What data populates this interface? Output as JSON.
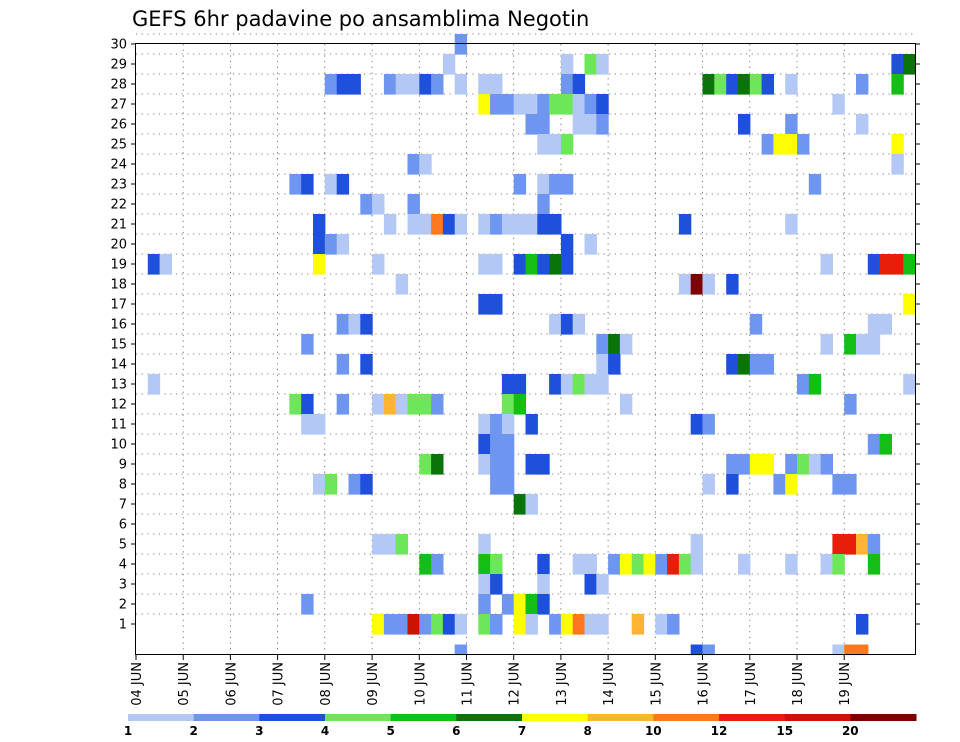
{
  "chart_data": {
    "type": "heatmap",
    "title": "GEFS 6hr padavine po ansamblima Negotin",
    "x_ticks": [
      "04 JUN",
      "05 JUN",
      "06 JUN",
      "07 JUN",
      "08 JUN",
      "09 JUN",
      "10 JUN",
      "11 JUN",
      "12 JUN",
      "13 JUN",
      "14 JUN",
      "15 JUN",
      "16 JUN",
      "17 JUN",
      "18 JUN",
      "19 JUN"
    ],
    "y_ticks": [
      "1",
      "2",
      "3",
      "4",
      "5",
      "6",
      "7",
      "8",
      "9",
      "10",
      "11",
      "12",
      "13",
      "14",
      "15",
      "16",
      "17",
      "18",
      "19",
      "20",
      "21",
      "22",
      "23",
      "24",
      "25",
      "26",
      "27",
      "28",
      "29",
      "30"
    ],
    "grid": "dotted",
    "legend": {
      "placement": "bottom",
      "labels": [
        "1",
        "2",
        "3",
        "4",
        "5",
        "6",
        "7",
        "8",
        "10",
        "12",
        "15",
        "20"
      ],
      "colors": [
        "#b4c8f5",
        "#6e96f0",
        "#1e50dc",
        "#6ee65a",
        "#14be14",
        "#0a730a",
        "#ffff00",
        "#ffb432",
        "#ff781e",
        "#e61e0a",
        "#c81400",
        "#7d0000"
      ]
    },
    "cells": [
      [
        26,
        29,
        1
      ],
      [
        27,
        30,
        2
      ],
      [
        36,
        29,
        1
      ],
      [
        38,
        29,
        4
      ],
      [
        39,
        29,
        1
      ],
      [
        64,
        29,
        3
      ],
      [
        65,
        29,
        6
      ],
      [
        16,
        28,
        2
      ],
      [
        17,
        28,
        3
      ],
      [
        18,
        28,
        3
      ],
      [
        21,
        28,
        2
      ],
      [
        22,
        28,
        1
      ],
      [
        23,
        28,
        1
      ],
      [
        24,
        28,
        3
      ],
      [
        25,
        28,
        2
      ],
      [
        27,
        28,
        1
      ],
      [
        29,
        28,
        1
      ],
      [
        30,
        28,
        1
      ],
      [
        36,
        28,
        2
      ],
      [
        37,
        28,
        3
      ],
      [
        48,
        28,
        6
      ],
      [
        49,
        28,
        4
      ],
      [
        50,
        28,
        3
      ],
      [
        51,
        28,
        6
      ],
      [
        52,
        28,
        4
      ],
      [
        53,
        28,
        3
      ],
      [
        55,
        28,
        1
      ],
      [
        61,
        28,
        2
      ],
      [
        64,
        28,
        5
      ],
      [
        29,
        27,
        7
      ],
      [
        30,
        27,
        2
      ],
      [
        31,
        27,
        2
      ],
      [
        32,
        27,
        1
      ],
      [
        33,
        27,
        1
      ],
      [
        34,
        27,
        2
      ],
      [
        35,
        27,
        4
      ],
      [
        36,
        27,
        4
      ],
      [
        37,
        27,
        1
      ],
      [
        38,
        27,
        2
      ],
      [
        39,
        27,
        3
      ],
      [
        59,
        27,
        1
      ],
      [
        33,
        26,
        2
      ],
      [
        34,
        26,
        2
      ],
      [
        37,
        26,
        1
      ],
      [
        38,
        26,
        1
      ],
      [
        39,
        26,
        2
      ],
      [
        51,
        26,
        3
      ],
      [
        55,
        26,
        2
      ],
      [
        61,
        26,
        1
      ],
      [
        34,
        25,
        1
      ],
      [
        35,
        25,
        1
      ],
      [
        36,
        25,
        4
      ],
      [
        53,
        25,
        2
      ],
      [
        54,
        25,
        7
      ],
      [
        55,
        25,
        7
      ],
      [
        56,
        25,
        2
      ],
      [
        64,
        25,
        7
      ],
      [
        23,
        24,
        2
      ],
      [
        24,
        24,
        1
      ],
      [
        64,
        24,
        1
      ],
      [
        13,
        23,
        2
      ],
      [
        14,
        23,
        3
      ],
      [
        16,
        23,
        1
      ],
      [
        17,
        23,
        3
      ],
      [
        32,
        23,
        2
      ],
      [
        34,
        23,
        1
      ],
      [
        35,
        23,
        2
      ],
      [
        36,
        23,
        2
      ],
      [
        57,
        23,
        2
      ],
      [
        19,
        22,
        2
      ],
      [
        20,
        22,
        1
      ],
      [
        23,
        22,
        2
      ],
      [
        34,
        22,
        2
      ],
      [
        15,
        21,
        3
      ],
      [
        21,
        21,
        1
      ],
      [
        23,
        21,
        1
      ],
      [
        24,
        21,
        1
      ],
      [
        25,
        21,
        9
      ],
      [
        26,
        21,
        3
      ],
      [
        27,
        21,
        1
      ],
      [
        29,
        21,
        1
      ],
      [
        30,
        21,
        2
      ],
      [
        31,
        21,
        1
      ],
      [
        32,
        21,
        1
      ],
      [
        33,
        21,
        1
      ],
      [
        34,
        21,
        3
      ],
      [
        35,
        21,
        3
      ],
      [
        46,
        21,
        3
      ],
      [
        55,
        21,
        1
      ],
      [
        15,
        20,
        3
      ],
      [
        16,
        20,
        2
      ],
      [
        17,
        20,
        1
      ],
      [
        36,
        20,
        3
      ],
      [
        38,
        20,
        1
      ],
      [
        1,
        19,
        3
      ],
      [
        2,
        19,
        1
      ],
      [
        15,
        19,
        7
      ],
      [
        20,
        19,
        1
      ],
      [
        29,
        19,
        1
      ],
      [
        30,
        19,
        1
      ],
      [
        32,
        19,
        3
      ],
      [
        33,
        19,
        5
      ],
      [
        34,
        19,
        3
      ],
      [
        35,
        19,
        6
      ],
      [
        36,
        19,
        3
      ],
      [
        58,
        19,
        1
      ],
      [
        62,
        19,
        3
      ],
      [
        63,
        19,
        10
      ],
      [
        64,
        19,
        10
      ],
      [
        65,
        19,
        5
      ],
      [
        22,
        18,
        1
      ],
      [
        46,
        18,
        1
      ],
      [
        47,
        18,
        12
      ],
      [
        48,
        18,
        1
      ],
      [
        50,
        18,
        3
      ],
      [
        29,
        17,
        3
      ],
      [
        30,
        17,
        3
      ],
      [
        65,
        17,
        7
      ],
      [
        17,
        16,
        2
      ],
      [
        18,
        16,
        1
      ],
      [
        19,
        16,
        3
      ],
      [
        35,
        16,
        1
      ],
      [
        36,
        16,
        3
      ],
      [
        37,
        16,
        1
      ],
      [
        52,
        16,
        2
      ],
      [
        62,
        16,
        1
      ],
      [
        63,
        16,
        1
      ],
      [
        14,
        15,
        2
      ],
      [
        39,
        15,
        2
      ],
      [
        40,
        15,
        6
      ],
      [
        41,
        15,
        1
      ],
      [
        58,
        15,
        1
      ],
      [
        60,
        15,
        5
      ],
      [
        61,
        15,
        1
      ],
      [
        62,
        15,
        1
      ],
      [
        17,
        14,
        2
      ],
      [
        19,
        14,
        3
      ],
      [
        39,
        14,
        1
      ],
      [
        40,
        14,
        3
      ],
      [
        50,
        14,
        3
      ],
      [
        51,
        14,
        6
      ],
      [
        52,
        14,
        2
      ],
      [
        53,
        14,
        2
      ],
      [
        1,
        13,
        1
      ],
      [
        31,
        13,
        3
      ],
      [
        32,
        13,
        3
      ],
      [
        35,
        13,
        3
      ],
      [
        36,
        13,
        1
      ],
      [
        37,
        13,
        4
      ],
      [
        38,
        13,
        1
      ],
      [
        39,
        13,
        1
      ],
      [
        56,
        13,
        2
      ],
      [
        57,
        13,
        5
      ],
      [
        65,
        13,
        1
      ],
      [
        13,
        12,
        4
      ],
      [
        14,
        12,
        3
      ],
      [
        17,
        12,
        2
      ],
      [
        20,
        12,
        1
      ],
      [
        21,
        12,
        8
      ],
      [
        22,
        12,
        1
      ],
      [
        23,
        12,
        4
      ],
      [
        24,
        12,
        4
      ],
      [
        25,
        12,
        2
      ],
      [
        31,
        12,
        4
      ],
      [
        32,
        12,
        5
      ],
      [
        41,
        12,
        1
      ],
      [
        60,
        12,
        2
      ],
      [
        14,
        11,
        1
      ],
      [
        15,
        11,
        1
      ],
      [
        29,
        11,
        1
      ],
      [
        30,
        11,
        2
      ],
      [
        31,
        11,
        1
      ],
      [
        33,
        11,
        3
      ],
      [
        47,
        11,
        3
      ],
      [
        48,
        11,
        2
      ],
      [
        29,
        10,
        3
      ],
      [
        30,
        10,
        2
      ],
      [
        31,
        10,
        2
      ],
      [
        62,
        10,
        2
      ],
      [
        63,
        10,
        5
      ],
      [
        24,
        9,
        4
      ],
      [
        25,
        9,
        6
      ],
      [
        29,
        9,
        1
      ],
      [
        30,
        9,
        2
      ],
      [
        31,
        9,
        2
      ],
      [
        33,
        9,
        3
      ],
      [
        34,
        9,
        3
      ],
      [
        50,
        9,
        2
      ],
      [
        51,
        9,
        2
      ],
      [
        52,
        9,
        7
      ],
      [
        53,
        9,
        7
      ],
      [
        55,
        9,
        2
      ],
      [
        56,
        9,
        4
      ],
      [
        57,
        9,
        1
      ],
      [
        58,
        9,
        2
      ],
      [
        15,
        8,
        1
      ],
      [
        16,
        8,
        4
      ],
      [
        18,
        8,
        2
      ],
      [
        19,
        8,
        3
      ],
      [
        30,
        8,
        2
      ],
      [
        31,
        8,
        2
      ],
      [
        48,
        8,
        1
      ],
      [
        50,
        8,
        3
      ],
      [
        54,
        8,
        2
      ],
      [
        55,
        8,
        7
      ],
      [
        59,
        8,
        2
      ],
      [
        60,
        8,
        2
      ],
      [
        32,
        7,
        6
      ],
      [
        33,
        7,
        1
      ],
      [
        20,
        5,
        1
      ],
      [
        21,
        5,
        1
      ],
      [
        22,
        5,
        4
      ],
      [
        29,
        5,
        1
      ],
      [
        47,
        5,
        1
      ],
      [
        59,
        5,
        10
      ],
      [
        60,
        5,
        10
      ],
      [
        61,
        5,
        8
      ],
      [
        62,
        5,
        2
      ],
      [
        24,
        4,
        5
      ],
      [
        25,
        4,
        2
      ],
      [
        29,
        4,
        5
      ],
      [
        30,
        4,
        4
      ],
      [
        34,
        4,
        3
      ],
      [
        37,
        4,
        1
      ],
      [
        38,
        4,
        1
      ],
      [
        40,
        4,
        2
      ],
      [
        41,
        4,
        7
      ],
      [
        42,
        4,
        4
      ],
      [
        43,
        4,
        7
      ],
      [
        44,
        4,
        2
      ],
      [
        45,
        4,
        10
      ],
      [
        46,
        4,
        4
      ],
      [
        47,
        4,
        1
      ],
      [
        51,
        4,
        1
      ],
      [
        55,
        4,
        1
      ],
      [
        58,
        4,
        1
      ],
      [
        59,
        4,
        4
      ],
      [
        62,
        4,
        5
      ],
      [
        29,
        3,
        1
      ],
      [
        30,
        3,
        3
      ],
      [
        34,
        3,
        1
      ],
      [
        38,
        3,
        3
      ],
      [
        39,
        3,
        1
      ],
      [
        14,
        2,
        2
      ],
      [
        29,
        2,
        2
      ],
      [
        31,
        2,
        2
      ],
      [
        32,
        2,
        7
      ],
      [
        33,
        2,
        5
      ],
      [
        34,
        2,
        3
      ],
      [
        20,
        1,
        7
      ],
      [
        21,
        1,
        2
      ],
      [
        22,
        1,
        2
      ],
      [
        23,
        1,
        11
      ],
      [
        24,
        1,
        2
      ],
      [
        25,
        1,
        4
      ],
      [
        26,
        1,
        3
      ],
      [
        27,
        1,
        1
      ],
      [
        29,
        1,
        4
      ],
      [
        30,
        1,
        2
      ],
      [
        32,
        1,
        7
      ],
      [
        33,
        1,
        1
      ],
      [
        35,
        1,
        2
      ],
      [
        36,
        1,
        7
      ],
      [
        37,
        1,
        9
      ],
      [
        38,
        1,
        1
      ],
      [
        39,
        1,
        1
      ],
      [
        42,
        1,
        8
      ],
      [
        44,
        1,
        1
      ],
      [
        45,
        1,
        2
      ],
      [
        61,
        1,
        3
      ],
      [
        27,
        0,
        2
      ],
      [
        47,
        0,
        3
      ],
      [
        48,
        0,
        2
      ],
      [
        59,
        0,
        1
      ],
      [
        60,
        0,
        9
      ],
      [
        61,
        0,
        9
      ]
    ]
  }
}
